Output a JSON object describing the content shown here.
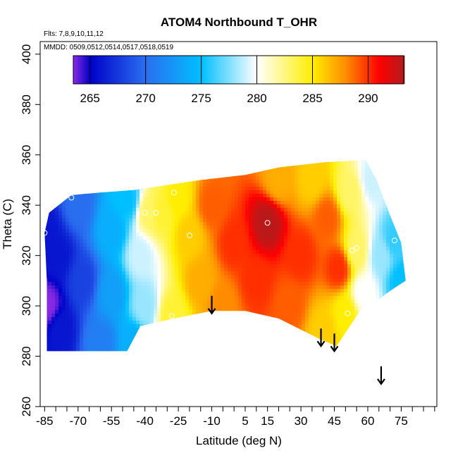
{
  "chart_data": {
    "type": "heatmap",
    "title": "ATOM4 Northbound T_OHR",
    "annotations": {
      "flights": "Flts: 7,8,9,10,11,12",
      "dates": "MMDD: 0509,0512,0514,0517,0518,0519"
    },
    "xlabel": "Latitude (deg N)",
    "ylabel": "Theta (C)",
    "xlim": [
      -87,
      91
    ],
    "ylim": [
      260,
      405
    ],
    "xticks": [
      -85,
      -80,
      -75,
      -70,
      -65,
      -60,
      -55,
      -50,
      -45,
      -40,
      -35,
      -30,
      -25,
      -20,
      -15,
      -10,
      -5,
      0,
      5,
      10,
      15,
      20,
      25,
      30,
      35,
      40,
      45,
      50,
      55,
      60,
      65,
      70,
      75,
      80,
      85,
      90
    ],
    "xtick_labels": [
      "-85",
      "-70",
      "-55",
      "-40",
      "-25",
      "-10",
      "5",
      "15",
      "30",
      "45",
      "60",
      "75"
    ],
    "xtick_label_values": [
      -85,
      -70,
      -55,
      -40,
      -25,
      -10,
      5,
      15,
      30,
      45,
      60,
      75
    ],
    "yticks": [
      260,
      280,
      300,
      320,
      340,
      360,
      380,
      400
    ],
    "ytick_labels": [
      "260",
      "280",
      "300",
      "320",
      "340",
      "360",
      "380",
      "400"
    ],
    "colorbar": {
      "range": [
        263.5,
        293.2
      ],
      "ticks": [
        265,
        270,
        275,
        280,
        285,
        290
      ],
      "tick_labels": [
        "265",
        "270",
        "275",
        "280",
        "285",
        "290"
      ],
      "colors": [
        "#8a2be2",
        "#0000c8",
        "#2a6ef0",
        "#00bfff",
        "#ffffff",
        "#ffee00",
        "#ff8c00",
        "#ff0000",
        "#b21c1c"
      ],
      "color_stops": [
        263.5,
        265,
        270,
        275,
        280,
        285,
        288,
        291,
        293.2
      ]
    },
    "field_boundary": [
      [
        -84,
        282
      ],
      [
        -48,
        282
      ],
      [
        -42,
        292
      ],
      [
        -27,
        295
      ],
      [
        -10,
        298
      ],
      [
        5,
        298
      ],
      [
        20,
        295
      ],
      [
        38,
        287
      ],
      [
        46,
        284
      ],
      [
        52,
        292
      ],
      [
        58,
        300
      ],
      [
        64,
        302
      ],
      [
        70,
        306
      ],
      [
        77,
        310
      ],
      [
        75,
        325
      ],
      [
        70,
        336
      ],
      [
        64,
        350
      ],
      [
        59,
        358
      ],
      [
        40,
        357
      ],
      [
        20,
        355
      ],
      [
        5,
        352
      ],
      [
        -15,
        350
      ],
      [
        -30,
        348
      ],
      [
        -45,
        346
      ],
      [
        -60,
        345
      ],
      [
        -73,
        344
      ],
      [
        -83,
        337
      ],
      [
        -85,
        329
      ],
      [
        -84,
        310
      ]
    ],
    "field_points": [
      {
        "lat": -84,
        "theta": 300,
        "value": 263.5
      },
      {
        "lat": -84,
        "theta": 329,
        "value": 266
      },
      {
        "lat": -79,
        "theta": 320,
        "value": 266
      },
      {
        "lat": -78,
        "theta": 290,
        "value": 266
      },
      {
        "lat": -70,
        "theta": 340,
        "value": 270
      },
      {
        "lat": -68,
        "theta": 310,
        "value": 268
      },
      {
        "lat": -60,
        "theta": 285,
        "value": 271
      },
      {
        "lat": -55,
        "theta": 330,
        "value": 274
      },
      {
        "lat": -55,
        "theta": 305,
        "value": 273
      },
      {
        "lat": -48,
        "theta": 342,
        "value": 275
      },
      {
        "lat": -45,
        "theta": 285,
        "value": 274
      },
      {
        "lat": -42,
        "theta": 320,
        "value": 279
      },
      {
        "lat": -40,
        "theta": 300,
        "value": 278
      },
      {
        "lat": -38,
        "theta": 337,
        "value": 283
      },
      {
        "lat": -33,
        "theta": 337,
        "value": 284
      },
      {
        "lat": -28,
        "theta": 296,
        "value": 284
      },
      {
        "lat": -25,
        "theta": 343,
        "value": 285
      },
      {
        "lat": -20,
        "theta": 328,
        "value": 286
      },
      {
        "lat": -15,
        "theta": 310,
        "value": 287
      },
      {
        "lat": -10,
        "theta": 340,
        "value": 289
      },
      {
        "lat": -5,
        "theta": 300,
        "value": 288
      },
      {
        "lat": 0,
        "theta": 325,
        "value": 290
      },
      {
        "lat": 10,
        "theta": 310,
        "value": 290
      },
      {
        "lat": 15,
        "theta": 333,
        "value": 293
      },
      {
        "lat": 20,
        "theta": 350,
        "value": 287
      },
      {
        "lat": 25,
        "theta": 300,
        "value": 289
      },
      {
        "lat": 30,
        "theta": 320,
        "value": 290
      },
      {
        "lat": 35,
        "theta": 350,
        "value": 286
      },
      {
        "lat": 40,
        "theta": 290,
        "value": 286
      },
      {
        "lat": 42,
        "theta": 335,
        "value": 289
      },
      {
        "lat": 47,
        "theta": 315,
        "value": 290
      },
      {
        "lat": 50,
        "theta": 297,
        "value": 285
      },
      {
        "lat": 52,
        "theta": 345,
        "value": 283
      },
      {
        "lat": 55,
        "theta": 322,
        "value": 283
      },
      {
        "lat": 58,
        "theta": 305,
        "value": 280
      },
      {
        "lat": 62,
        "theta": 350,
        "value": 279
      },
      {
        "lat": 66,
        "theta": 320,
        "value": 278
      },
      {
        "lat": 72,
        "theta": 326,
        "value": 276
      },
      {
        "lat": 75,
        "theta": 310,
        "value": 275
      }
    ],
    "circle_markers": [
      {
        "lat": -73,
        "theta": 343
      },
      {
        "lat": -85,
        "theta": 329
      },
      {
        "lat": -40,
        "theta": 337
      },
      {
        "lat": -35,
        "theta": 337
      },
      {
        "lat": -27,
        "theta": 345
      },
      {
        "lat": -20,
        "theta": 328
      },
      {
        "lat": -28,
        "theta": 296
      },
      {
        "lat": 15,
        "theta": 333
      },
      {
        "lat": 51,
        "theta": 297
      },
      {
        "lat": 53,
        "theta": 322
      },
      {
        "lat": 55,
        "theta": 323
      },
      {
        "lat": 72,
        "theta": 326
      }
    ],
    "arrows": [
      {
        "lat": -10,
        "theta_top": 304,
        "theta_tip": 297
      },
      {
        "lat": 39,
        "theta_top": 291,
        "theta_tip": 284
      },
      {
        "lat": 45,
        "theta_top": 289,
        "theta_tip": 282
      },
      {
        "lat": 66,
        "theta_top": 276,
        "theta_tip": 269
      }
    ]
  }
}
